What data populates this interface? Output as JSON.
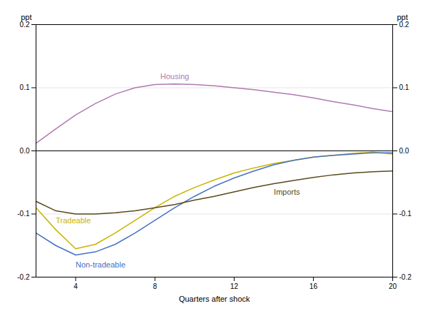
{
  "chart_data": {
    "type": "line",
    "xlabel": "Quarters after shock",
    "ylabel": "ppt",
    "x": [
      2,
      3,
      4,
      5,
      6,
      7,
      8,
      9,
      10,
      11,
      12,
      13,
      14,
      15,
      16,
      17,
      18,
      19,
      20
    ],
    "series": [
      {
        "name": "Housing",
        "color": "#b07ab0",
        "values": [
          0.012,
          0.035,
          0.057,
          0.075,
          0.09,
          0.1,
          0.105,
          0.106,
          0.105,
          0.103,
          0.1,
          0.097,
          0.093,
          0.089,
          0.084,
          0.078,
          0.073,
          0.067,
          0.062
        ]
      },
      {
        "name": "Tradeable",
        "color": "#c8b400",
        "values": [
          -0.09,
          -0.125,
          -0.155,
          -0.148,
          -0.13,
          -0.11,
          -0.09,
          -0.072,
          -0.058,
          -0.046,
          -0.035,
          -0.027,
          -0.02,
          -0.015,
          -0.01,
          -0.007,
          -0.004,
          -0.002,
          -0.005
        ]
      },
      {
        "name": "Non-tradeable",
        "color": "#4472c4",
        "values": [
          -0.13,
          -0.15,
          -0.165,
          -0.16,
          -0.148,
          -0.13,
          -0.11,
          -0.09,
          -0.072,
          -0.056,
          -0.043,
          -0.032,
          -0.022,
          -0.015,
          -0.01,
          -0.007,
          -0.005,
          -0.003,
          -0.003
        ]
      },
      {
        "name": "Imports",
        "color": "#5a4a1a",
        "values": [
          -0.08,
          -0.095,
          -0.1,
          -0.1,
          -0.098,
          -0.095,
          -0.09,
          -0.085,
          -0.078,
          -0.072,
          -0.065,
          -0.058,
          -0.052,
          -0.047,
          -0.042,
          -0.038,
          -0.035,
          -0.033,
          -0.032
        ]
      }
    ],
    "xlim": [
      2,
      20
    ],
    "xticks": [
      4,
      8,
      12,
      16,
      20
    ],
    "ylim": [
      -0.2,
      0.2
    ],
    "yticks": [
      -0.2,
      -0.1,
      {
        "value": 0.0,
        "label": "0.0"
      },
      0.1,
      0.2
    ],
    "grid": true
  }
}
